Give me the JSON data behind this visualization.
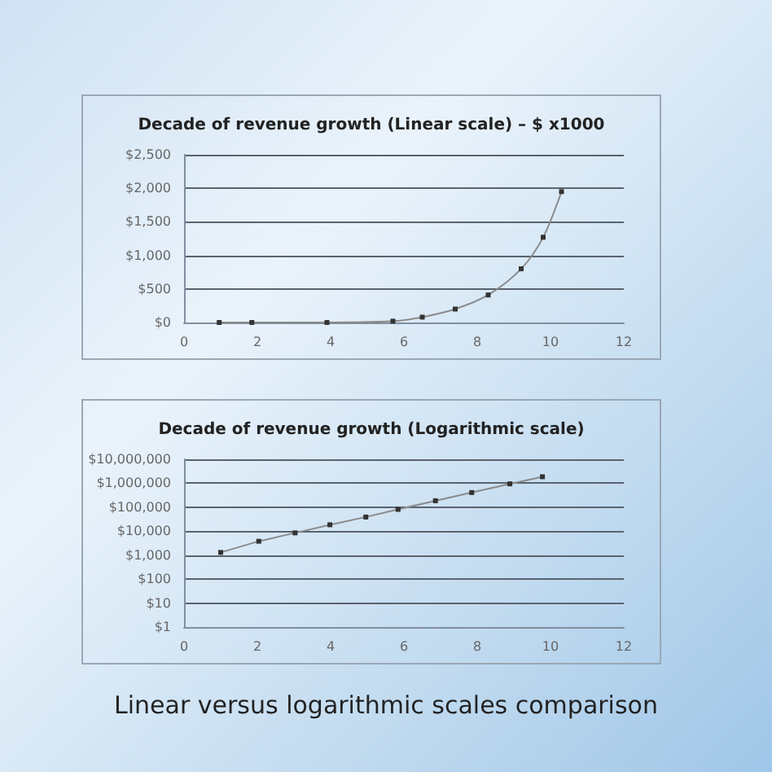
{
  "chart_data": [
    {
      "type": "line",
      "title": "Decade of revenue growth (Linear scale) – $ x1000",
      "x": [
        0.96,
        1.85,
        3.9,
        5.7,
        6.5,
        7.4,
        8.3,
        9.2,
        9.8,
        10.3
      ],
      "series": [
        {
          "color": "#333333",
          "values": [
            0,
            0,
            0,
            20,
            80,
            200,
            410,
            800,
            1270,
            1950
          ]
        }
      ],
      "xlim": [
        0,
        12
      ],
      "xticks": [
        0,
        2,
        4,
        6,
        8,
        10,
        12
      ],
      "ylim": [
        0,
        2500
      ],
      "yticks": [
        {
          "value": 0,
          "label": "$0"
        },
        {
          "value": 500,
          "label": "$500"
        },
        {
          "value": 1000,
          "label": "$1,000"
        },
        {
          "value": 1500,
          "label": "$1,500"
        },
        {
          "value": 2000,
          "label": "$2,000"
        },
        {
          "value": 2500,
          "label": "$2,500"
        }
      ],
      "grid": "y",
      "marker": "square",
      "line_style": "solid"
    },
    {
      "type": "line",
      "title": "Decade of revenue growth (Logarithmic scale)",
      "x": [
        1.0,
        2.04,
        3.03,
        3.98,
        4.96,
        5.84,
        6.86,
        7.85,
        8.89,
        9.78
      ],
      "series": [
        {
          "color": "#333333",
          "values": [
            1300,
            3800,
            8500,
            18500,
            39000,
            81000,
            186000,
            410000,
            944000,
            1870000
          ]
        }
      ],
      "xlim": [
        0,
        12
      ],
      "xticks": [
        0,
        2,
        4,
        6,
        8,
        10,
        12
      ],
      "ylim": [
        1,
        10000000
      ],
      "yticks": [
        {
          "value": 1,
          "label": "$1"
        },
        {
          "value": 10,
          "label": "$10"
        },
        {
          "value": 100,
          "label": "$100"
        },
        {
          "value": 1000,
          "label": "$1,000"
        },
        {
          "value": 10000,
          "label": "$10,000"
        },
        {
          "value": 100000,
          "label": "$100,000"
        },
        {
          "value": 1000000,
          "label": "$1,000,000"
        },
        {
          "value": 10000000,
          "label": "$10,000,000"
        }
      ],
      "log": "y",
      "grid": "y",
      "marker": "square",
      "line_style": "solid",
      "annotations": [
        "Linear versus logarithmic scales comparison"
      ]
    }
  ]
}
